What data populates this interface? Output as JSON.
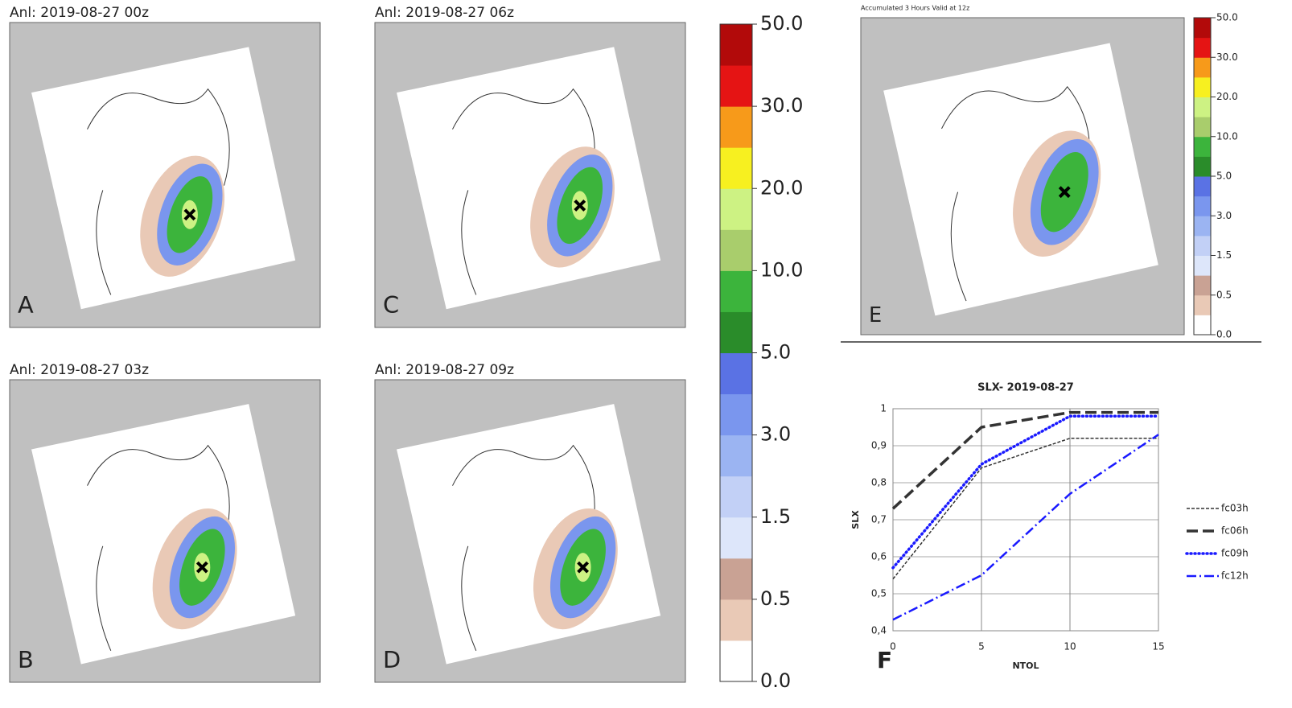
{
  "panels": [
    {
      "title": "Anl: 2019-08-27 00z",
      "letter": "A"
    },
    {
      "title": "Anl: 2019-08-27 03z",
      "letter": "B"
    },
    {
      "title": "Anl: 2019-08-27 06z",
      "letter": "C"
    },
    {
      "title": "Anl: 2019-08-27 09z",
      "letter": "D"
    },
    {
      "title": "Accumulated 3 Hours Valid at 12z",
      "letter": "E"
    }
  ],
  "colorbar": {
    "colors": [
      "#ffffff",
      "#e9c9b6",
      "#c9a294",
      "#dde6fa",
      "#c2d0f6",
      "#9bb4f2",
      "#7a96ee",
      "#5a72e4",
      "#2a8c2a",
      "#3cb43c",
      "#a9cd6c",
      "#cdf283",
      "#f7f020",
      "#f79a1a",
      "#e51414",
      "#b20a0a"
    ],
    "ticks": [
      {
        "value": 0,
        "label": "0.0"
      },
      {
        "value": 0.5,
        "label": "0.5"
      },
      {
        "value": 1.5,
        "label": "1.5"
      },
      {
        "value": 3,
        "label": "3.0"
      },
      {
        "value": 5,
        "label": "5.0"
      },
      {
        "value": 10,
        "label": "10.0"
      },
      {
        "value": 20,
        "label": "20.0"
      },
      {
        "value": 30,
        "label": "30.0"
      },
      {
        "value": 50,
        "label": "50.0"
      }
    ]
  },
  "chart_data": {
    "type": "line",
    "title": "SLX- 2019-08-27",
    "panel_letter": "F",
    "x_label": "NTOL",
    "y_label": "SLX",
    "x": [
      0,
      5,
      10,
      15
    ],
    "series": [
      {
        "name": "fc03h",
        "color": "#333333",
        "values": [
          0.54,
          0.84,
          0.92,
          0.92
        ]
      },
      {
        "name": "fc06h",
        "color": "#333333",
        "values": [
          0.73,
          0.95,
          0.99,
          0.99
        ]
      },
      {
        "name": "fc09h",
        "color": "#1a1aff",
        "values": [
          0.57,
          0.85,
          0.98,
          0.98
        ]
      },
      {
        "name": "fc12h",
        "color": "#1a1aff",
        "values": [
          0.43,
          0.55,
          0.77,
          0.93
        ]
      }
    ],
    "xlim": [
      0,
      15
    ],
    "ylim": [
      0.4,
      1
    ],
    "xticks": [
      0,
      5,
      10,
      15
    ],
    "yticks": [
      {
        "value": 0.4,
        "label": "0,4"
      },
      {
        "value": 0.5,
        "label": "0,5"
      },
      {
        "value": 0.6,
        "label": "0,6"
      },
      {
        "value": 0.7,
        "label": "0,7"
      },
      {
        "value": 0.8,
        "label": "0,8"
      },
      {
        "value": 0.9,
        "label": "0,9"
      },
      1
    ],
    "grid": true,
    "legend": "right"
  }
}
